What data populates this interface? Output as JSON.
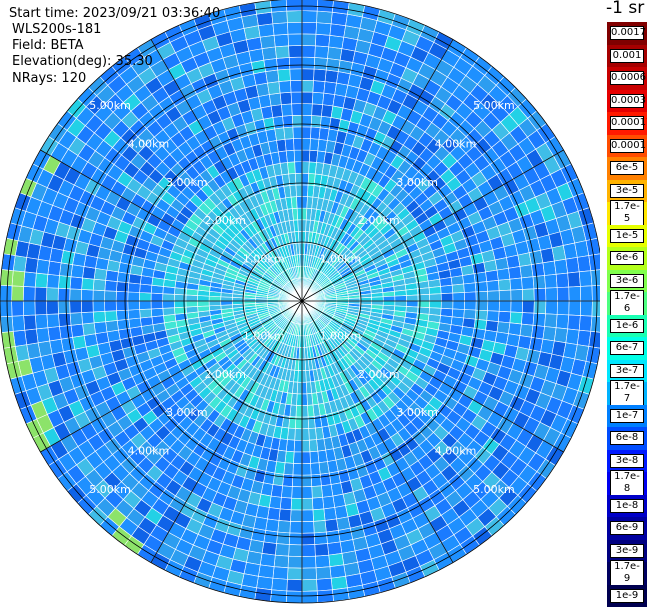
{
  "header": {
    "start_time": "Start time: 2023/09/21 03:36:40",
    "instrument": "WLS200s-181",
    "field": "Field: BETA",
    "elevation": "Elevation(deg): 35.30",
    "nrays": "NRays: 120"
  },
  "colorbar": {
    "unit": "-1 sr",
    "entries": [
      {
        "label": "0.0017",
        "color": "#800000"
      },
      {
        "label": "0.001",
        "color": "#a60000"
      },
      {
        "label": "0.0006",
        "color": "#c80000"
      },
      {
        "label": "0.0003",
        "color": "#e60000"
      },
      {
        "label": "0.00017",
        "color": "#ff1a00"
      },
      {
        "label": "0.0001",
        "color": "#ff4d00"
      },
      {
        "label": "6e-5",
        "color": "#ff8000"
      },
      {
        "label": "3e-5",
        "color": "#ffb300"
      },
      {
        "label": "1.7e-5",
        "color": "#ffe600"
      },
      {
        "label": "1e-5",
        "color": "#e6ff00"
      },
      {
        "label": "6e-6",
        "color": "#b3ff1a"
      },
      {
        "label": "3e-6",
        "color": "#80ff4d"
      },
      {
        "label": "1.7e-6",
        "color": "#4dff80"
      },
      {
        "label": "1e-6",
        "color": "#1affb3"
      },
      {
        "label": "6e-7",
        "color": "#00ffe6"
      },
      {
        "label": "3e-7",
        "color": "#00e6ff"
      },
      {
        "label": "1.7e-7",
        "color": "#00b3ff"
      },
      {
        "label": "1e-7",
        "color": "#0080ff"
      },
      {
        "label": "6e-8",
        "color": "#004dff"
      },
      {
        "label": "3e-8",
        "color": "#001aff"
      },
      {
        "label": "1.7e-8",
        "color": "#0000f0"
      },
      {
        "label": "1e-8",
        "color": "#0000c8"
      },
      {
        "label": "6e-9",
        "color": "#0000a0"
      },
      {
        "label": "3e-9",
        "color": "#000080"
      },
      {
        "label": "1.7e-9",
        "color": "#000060"
      },
      {
        "label": "1e-9",
        "color": "#000050"
      }
    ]
  },
  "radar": {
    "ring_km": [
      1,
      2,
      3,
      4,
      5
    ],
    "ring_labels": [
      "1.00km",
      "2.00km",
      "3.00km",
      "4.00km",
      "5.00km"
    ],
    "spokes_deg": 30,
    "palette": [
      "#1a7bff",
      "#1e90ff",
      "#2c9df0",
      "#0f63e8",
      "#3fbde8",
      "#22d1e6",
      "#40e6d5",
      "#8ce36a"
    ]
  }
}
